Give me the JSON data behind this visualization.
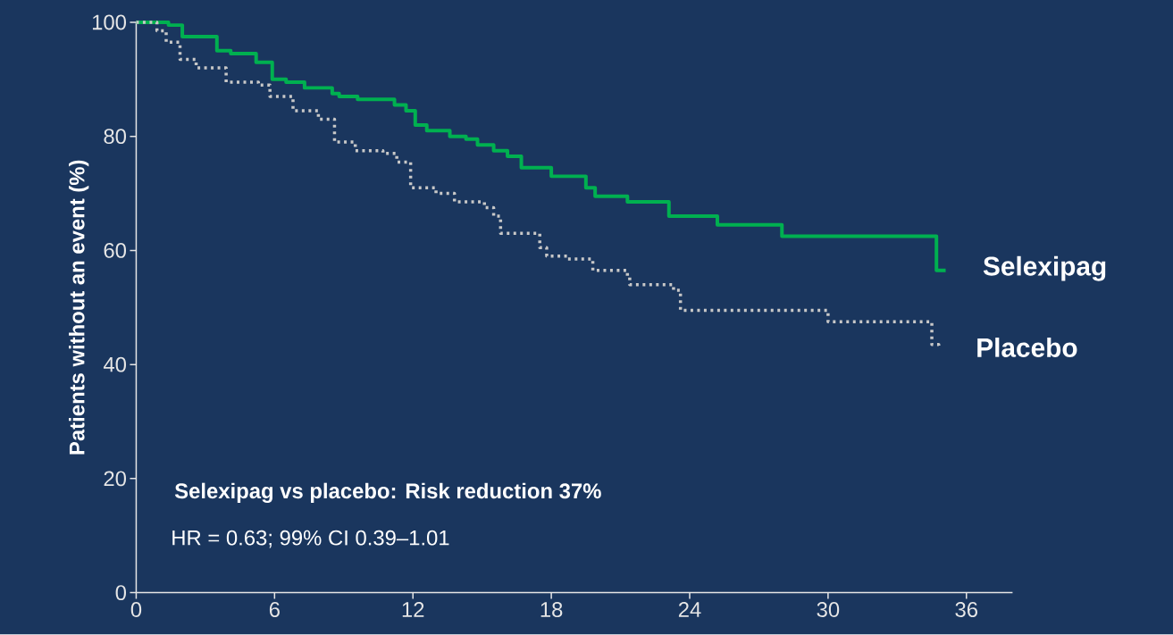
{
  "chart_data": {
    "type": "step",
    "ylabel": "Patients without an event (%)",
    "xlim": [
      0,
      38
    ],
    "xticks": [
      0,
      6,
      12,
      18,
      24,
      30,
      36
    ],
    "ylim": [
      0,
      100
    ],
    "yticks": [
      0,
      20,
      40,
      60,
      80,
      100
    ],
    "grid": false,
    "legend": false,
    "annotations": [
      "Selexipag vs placebo: Risk reduction 37%",
      "HR = 0.63;     99% CI 0.39–1.01"
    ],
    "series": [
      {
        "name": "Selexipag",
        "color": "#00b050",
        "line_style": "solid",
        "x": [
          0,
          1.4,
          2,
          3.5,
          4.1,
          5.2,
          5.9,
          6.5,
          7.3,
          8.5,
          8.8,
          9.6,
          11.2,
          11.7,
          12.1,
          12.6,
          13.6,
          14.3,
          14.8,
          15.5,
          16.1,
          16.7,
          18,
          19.5,
          19.9,
          21.3,
          23.1,
          25.2,
          28,
          34.7,
          35.1
        ],
        "values": [
          100,
          99.5,
          97.5,
          95,
          94.5,
          93,
          90,
          89.5,
          88.5,
          87.5,
          87,
          86.5,
          85.5,
          84.5,
          82,
          81,
          80,
          79.5,
          78.5,
          77.5,
          76.5,
          74.5,
          73,
          71,
          69.5,
          68.5,
          66,
          64.5,
          62.5,
          56.5,
          56.5
        ]
      },
      {
        "name": "Placebo",
        "color": "#c8c8c8",
        "line_style": "dotted",
        "x": [
          0,
          0.9,
          1.3,
          1.9,
          2.6,
          3.9,
          5.3,
          5.8,
          6.8,
          7.9,
          8.6,
          9.5,
          10.7,
          11.3,
          11.9,
          13,
          13.8,
          15.1,
          15.5,
          15.8,
          17.5,
          17.8,
          18.7,
          19.8,
          21.3,
          21.4,
          23.3,
          23.6,
          30,
          34.5,
          34.8
        ],
        "values": [
          100,
          98.5,
          96.5,
          93.5,
          92,
          89.5,
          89,
          87,
          84.5,
          83,
          79,
          77.5,
          77,
          75.5,
          71,
          70,
          68.5,
          67.5,
          66,
          63,
          60.5,
          59,
          58.5,
          56.5,
          55.5,
          54,
          53,
          49.5,
          47.5,
          43.5,
          43
        ]
      }
    ]
  }
}
